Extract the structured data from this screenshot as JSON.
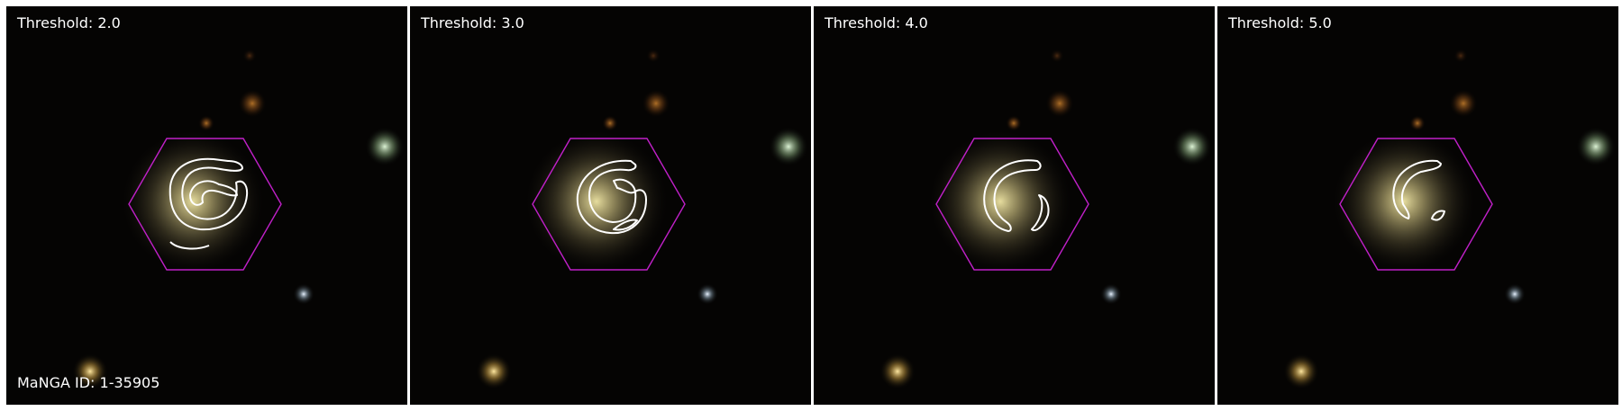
{
  "figure": {
    "panels": [
      {
        "threshold_label": "Threshold: 2.0"
      },
      {
        "threshold_label": "Threshold: 3.0"
      },
      {
        "threshold_label": "Threshold: 4.0"
      },
      {
        "threshold_label": "Threshold: 5.0"
      }
    ],
    "galaxy_id_label": "MaNGA ID: 1-35905",
    "colors": {
      "background": "#050403",
      "hexagon": "#c020c8",
      "contour": "#ffffff",
      "galaxy_core": "#e6dc9a",
      "panel_border": "#ffffff"
    }
  }
}
